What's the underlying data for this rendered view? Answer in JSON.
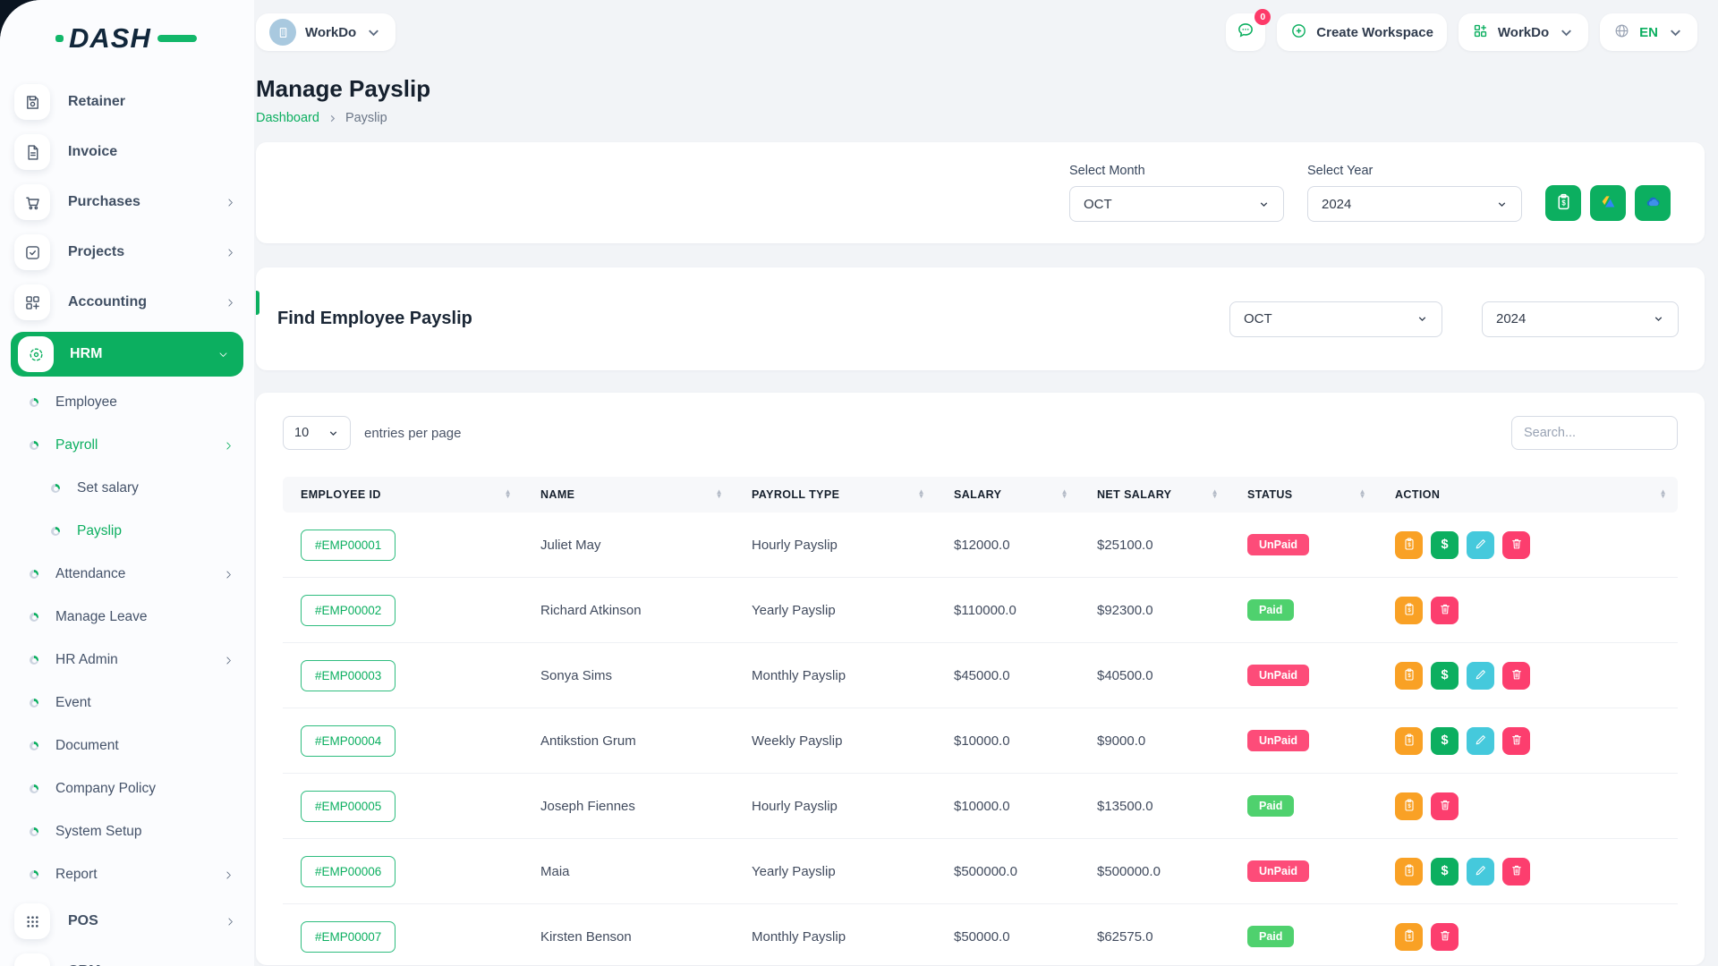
{
  "logo": {
    "text": "DASH"
  },
  "topbar": {
    "workspace_name": "WorkDo",
    "chat_badge": "0",
    "create_workspace": "Create Workspace",
    "workdo_menu": "WorkDo",
    "language": "EN"
  },
  "sidebar": {
    "items": [
      {
        "label": "Retainer",
        "icon": "retainer-icon",
        "style": "tile"
      },
      {
        "label": "Invoice",
        "icon": "invoice-icon",
        "style": "tile"
      },
      {
        "label": "Purchases",
        "icon": "purchases-icon",
        "style": "tile",
        "chevron": "right"
      },
      {
        "label": "Projects",
        "icon": "projects-icon",
        "style": "tile",
        "chevron": "right"
      },
      {
        "label": "Accounting",
        "icon": "accounting-icon",
        "style": "tile",
        "chevron": "right"
      },
      {
        "label": "HRM",
        "icon": "hrm-icon",
        "style": "tile",
        "active": true,
        "chevron": "down"
      },
      {
        "label": "Employee",
        "style": "sub"
      },
      {
        "label": "Payroll",
        "style": "sub",
        "active": true,
        "chevron": "right"
      },
      {
        "label": "Set salary",
        "style": "sub2"
      },
      {
        "label": "Payslip",
        "style": "sub2",
        "active": true
      },
      {
        "label": "Attendance",
        "style": "sub",
        "chevron": "right"
      },
      {
        "label": "Manage Leave",
        "style": "sub"
      },
      {
        "label": "HR Admin",
        "style": "sub",
        "chevron": "right"
      },
      {
        "label": "Event",
        "style": "sub"
      },
      {
        "label": "Document",
        "style": "sub"
      },
      {
        "label": "Company Policy",
        "style": "sub"
      },
      {
        "label": "System Setup",
        "style": "sub"
      },
      {
        "label": "Report",
        "style": "sub",
        "chevron": "right"
      },
      {
        "label": "POS",
        "icon": "pos-icon",
        "style": "tile",
        "chevron": "right"
      },
      {
        "label": "CRM",
        "icon": "crm-icon",
        "style": "tile",
        "chevron": "right"
      }
    ]
  },
  "page": {
    "title": "Manage Payslip",
    "breadcrumb_home": "Dashboard",
    "breadcrumb_current": "Payslip"
  },
  "filter_card": {
    "month_label": "Select Month",
    "month_value": "OCT",
    "year_label": "Select Year",
    "year_value": "2024",
    "export_buttons": [
      "bulk-payslip",
      "google-drive",
      "one-drive"
    ]
  },
  "find_card": {
    "title": "Find Employee Payslip",
    "month_value": "OCT",
    "year_value": "2024"
  },
  "table": {
    "page_size": "10",
    "entries_label": "entries per page",
    "search_placeholder": "Search...",
    "columns": [
      "EMPLOYEE ID",
      "NAME",
      "PAYROLL TYPE",
      "SALARY",
      "NET SALARY",
      "STATUS",
      "ACTION"
    ],
    "rows": [
      {
        "id": "#EMP00001",
        "name": "Juliet May",
        "payroll_type": "Hourly Payslip",
        "salary": "$12000.0",
        "net_salary": "$25100.0",
        "status": "UnPaid",
        "actions": [
          "payslip",
          "pay",
          "edit",
          "delete"
        ]
      },
      {
        "id": "#EMP00002",
        "name": "Richard Atkinson",
        "payroll_type": "Yearly Payslip",
        "salary": "$110000.0",
        "net_salary": "$92300.0",
        "status": "Paid",
        "actions": [
          "payslip",
          "delete"
        ]
      },
      {
        "id": "#EMP00003",
        "name": "Sonya Sims",
        "payroll_type": "Monthly Payslip",
        "salary": "$45000.0",
        "net_salary": "$40500.0",
        "status": "UnPaid",
        "actions": [
          "payslip",
          "pay",
          "edit",
          "delete"
        ]
      },
      {
        "id": "#EMP00004",
        "name": "Antikstion Grum",
        "payroll_type": "Weekly Payslip",
        "salary": "$10000.0",
        "net_salary": "$9000.0",
        "status": "UnPaid",
        "actions": [
          "payslip",
          "pay",
          "edit",
          "delete"
        ]
      },
      {
        "id": "#EMP00005",
        "name": "Joseph Fiennes",
        "payroll_type": "Hourly Payslip",
        "salary": "$10000.0",
        "net_salary": "$13500.0",
        "status": "Paid",
        "actions": [
          "payslip",
          "delete"
        ]
      },
      {
        "id": "#EMP00006",
        "name": "Maia",
        "payroll_type": "Yearly Payslip",
        "salary": "$500000.0",
        "net_salary": "$500000.0",
        "status": "UnPaid",
        "actions": [
          "payslip",
          "pay",
          "edit",
          "delete"
        ]
      },
      {
        "id": "#EMP00007",
        "name": "Kirsten Benson",
        "payroll_type": "Monthly Payslip",
        "salary": "$50000.0",
        "net_salary": "$62575.0",
        "status": "Paid",
        "actions": [
          "payslip",
          "delete"
        ]
      }
    ]
  },
  "colors": {
    "primary_green": "#0caf60",
    "unpaid_badge": "#fd4c79",
    "paid_badge": "#4fd16e",
    "payslip_button": "#f9a125",
    "edit_button": "#45c9dc",
    "delete_button": "#fc3e6e"
  }
}
